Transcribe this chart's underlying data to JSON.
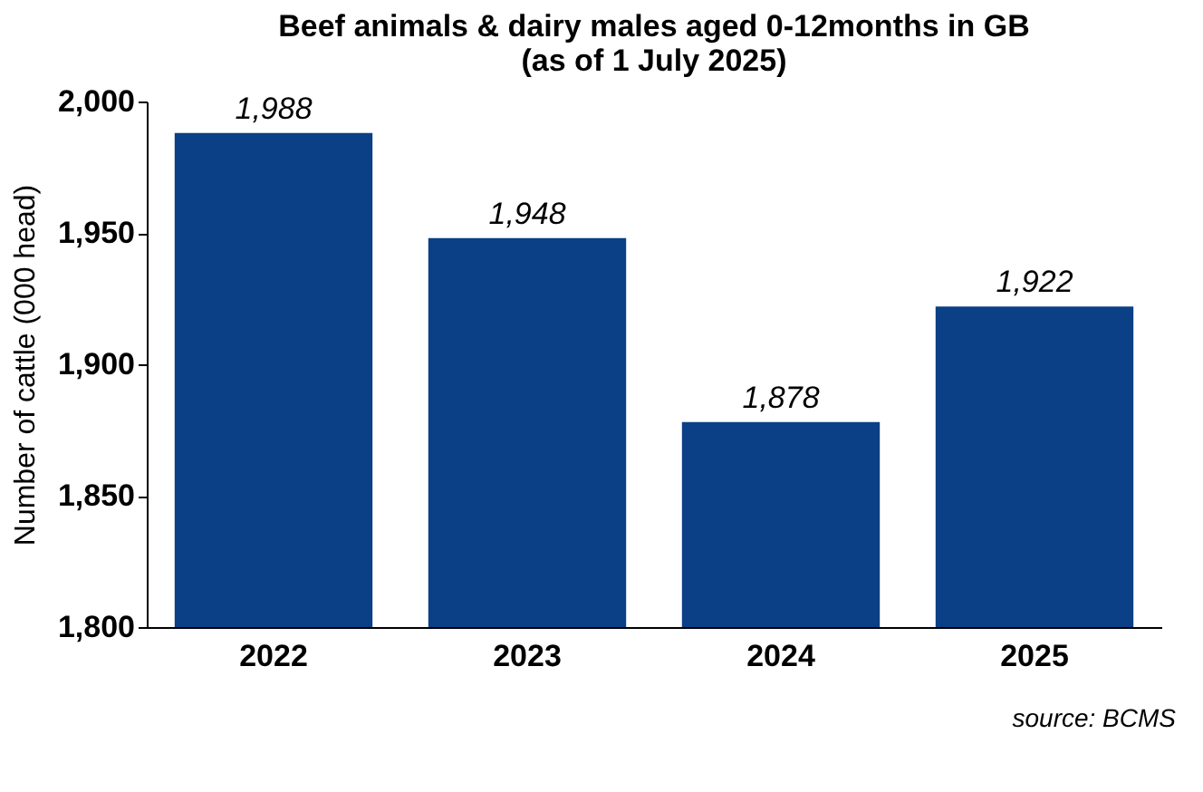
{
  "chart_data": {
    "type": "bar",
    "title": [
      "Beef animals & dairy males aged 0-12months in GB",
      "(as of 1 July 2025)"
    ],
    "categories": [
      "2022",
      "2023",
      "2024",
      "2025"
    ],
    "values": [
      1988,
      1948,
      1878,
      1922
    ],
    "color": "#0b3f86",
    "ylabel": "Number of cattle (000 head)",
    "ylim": [
      1800,
      2000
    ],
    "yticks": [
      {
        "value": 1800,
        "label": "1,800"
      },
      {
        "value": 1850,
        "label": "1,850"
      },
      {
        "value": 1900,
        "label": "1,900"
      },
      {
        "value": 1950,
        "label": "1,950"
      },
      {
        "value": 2000,
        "label": "2,000"
      }
    ],
    "value_labels": [
      "1,988",
      "1,948",
      "1,878",
      "1,922"
    ],
    "annotations": [
      "source: BCMS"
    ],
    "grid": false
  }
}
